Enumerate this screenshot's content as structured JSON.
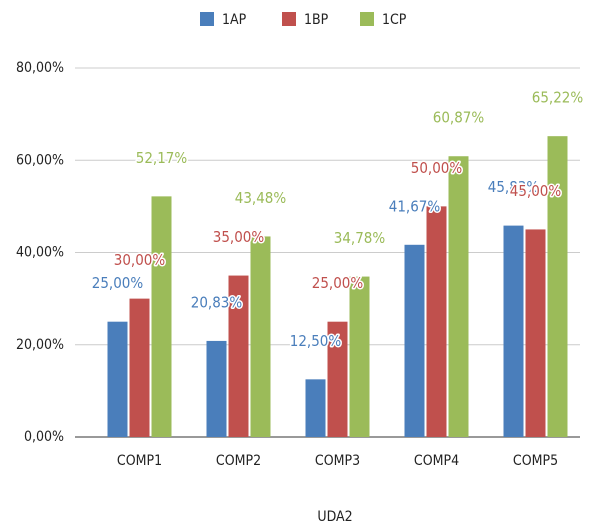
{
  "chart_data": {
    "type": "bar",
    "categories": [
      "COMP1",
      "COMP2",
      "COMP3",
      "COMP4",
      "COMP5"
    ],
    "series": [
      {
        "name": "1AP",
        "color": "#4a7ebb",
        "values": [
          25,
          20.83,
          12.5,
          41.67,
          45.83
        ],
        "value_labels": [
          "25,00%",
          "20,83%",
          "12,50%",
          "41,67%",
          "45,83%"
        ]
      },
      {
        "name": "1BP",
        "color": "#c0504d",
        "values": [
          30,
          35,
          25,
          50,
          45
        ],
        "value_labels": [
          "30,00%",
          "35,00%",
          "25,00%",
          "50,00%",
          "45,00%"
        ]
      },
      {
        "name": "1CP",
        "color": "#9bbb59",
        "values": [
          52.17,
          43.48,
          34.78,
          60.87,
          65.22
        ],
        "value_labels": [
          "52,17%",
          "43,48%",
          "34,78%",
          "60,87%",
          "65,22%"
        ]
      }
    ],
    "xlabel": "UDA2",
    "ylim": [
      0,
      80
    ],
    "yticks": [
      {
        "value": 0,
        "label": "0,00%"
      },
      {
        "value": 20,
        "label": "20,00%"
      },
      {
        "value": 40,
        "label": "40,00%"
      },
      {
        "value": 60,
        "label": "60,00%"
      },
      {
        "value": 80,
        "label": "80,00%"
      }
    ],
    "grid": true,
    "legend": "top"
  }
}
